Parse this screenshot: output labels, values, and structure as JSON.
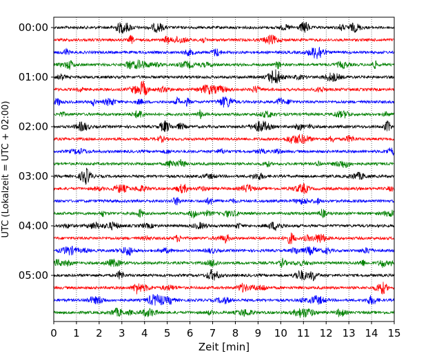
{
  "chart_data": {
    "type": "line",
    "xlabel": "Zeit  [min]",
    "ylabel": "UTC (Lokalzeit = UTC + 02:00)",
    "xlim": [
      0,
      15
    ],
    "x_ticks": [
      "0",
      "1",
      "2",
      "3",
      "4",
      "5",
      "6",
      "7",
      "8",
      "9",
      "10",
      "11",
      "12",
      "13",
      "14",
      "15"
    ],
    "y_tick_labels": [
      "00:00",
      "01:00",
      "02:00",
      "03:00",
      "04:00",
      "05:00"
    ],
    "grid": "vertical dotted lines at every minute",
    "trace_count": 24,
    "trace_interval_minutes": 15,
    "trace_colors": [
      "#000000",
      "#ff0000",
      "#0000ff",
      "#008000"
    ],
    "traces": [
      {
        "start": "00:00",
        "color": "#000000"
      },
      {
        "start": "00:15",
        "color": "#ff0000"
      },
      {
        "start": "00:30",
        "color": "#0000ff"
      },
      {
        "start": "00:45",
        "color": "#008000"
      },
      {
        "start": "01:00",
        "color": "#000000"
      },
      {
        "start": "01:15",
        "color": "#ff0000"
      },
      {
        "start": "01:30",
        "color": "#0000ff"
      },
      {
        "start": "01:45",
        "color": "#008000"
      },
      {
        "start": "02:00",
        "color": "#000000"
      },
      {
        "start": "02:15",
        "color": "#ff0000"
      },
      {
        "start": "02:30",
        "color": "#0000ff"
      },
      {
        "start": "02:45",
        "color": "#008000"
      },
      {
        "start": "03:00",
        "color": "#000000"
      },
      {
        "start": "03:15",
        "color": "#ff0000"
      },
      {
        "start": "03:30",
        "color": "#0000ff"
      },
      {
        "start": "03:45",
        "color": "#008000"
      },
      {
        "start": "04:00",
        "color": "#000000"
      },
      {
        "start": "04:15",
        "color": "#ff0000"
      },
      {
        "start": "04:30",
        "color": "#0000ff"
      },
      {
        "start": "04:45",
        "color": "#008000"
      },
      {
        "start": "05:00",
        "color": "#000000"
      },
      {
        "start": "05:15",
        "color": "#ff0000"
      },
      {
        "start": "05:30",
        "color": "#0000ff"
      },
      {
        "start": "05:45",
        "color": "#008000"
      }
    ]
  }
}
